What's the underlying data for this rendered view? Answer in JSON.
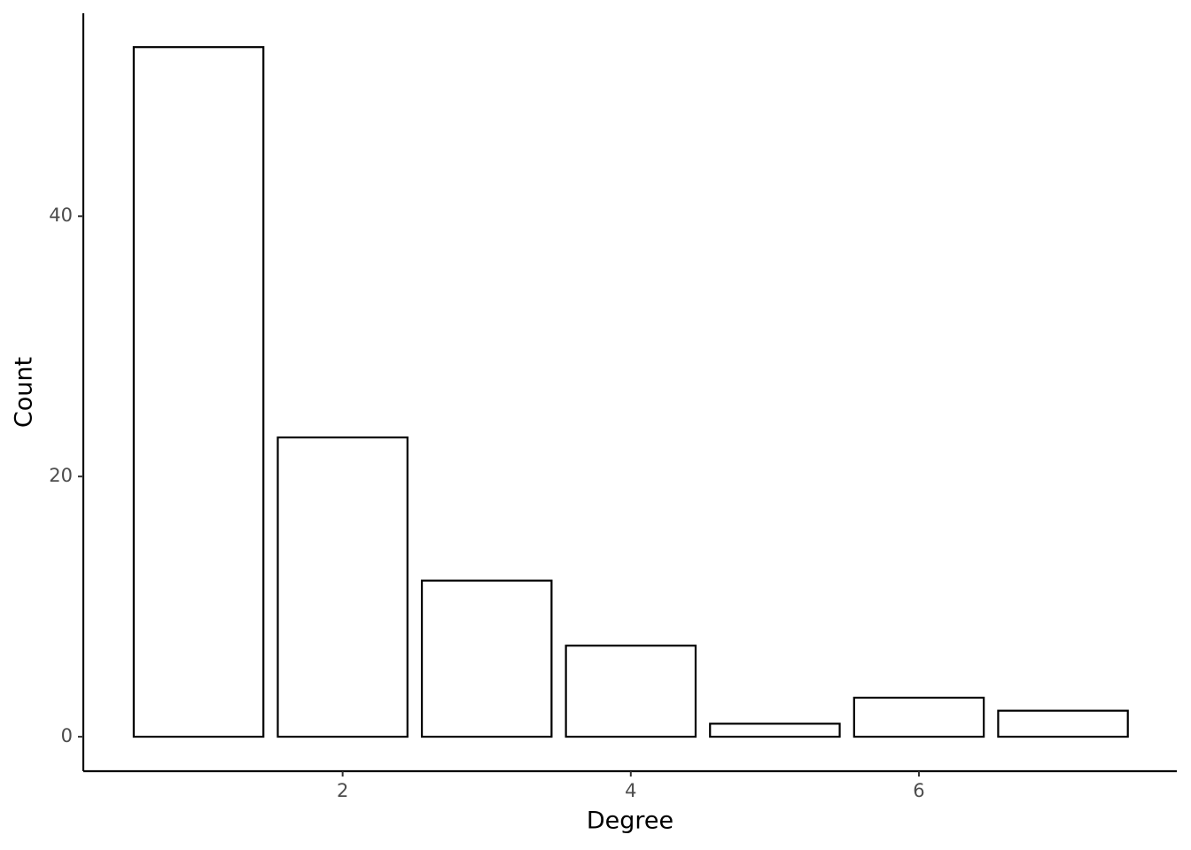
{
  "chart_data": {
    "type": "bar",
    "x_label": "Degree",
    "y_label": "Count",
    "x": [
      1,
      2,
      3,
      4,
      5,
      6,
      7
    ],
    "values": [
      53,
      23,
      12,
      7,
      1,
      3,
      2
    ],
    "color": "#ffffff",
    "edge_color": "#000000",
    "xlim": [
      0.2,
      7.79
    ],
    "ylim": [
      -2.65,
      55.6
    ],
    "xticks": [
      2,
      4,
      6
    ],
    "yticks": [
      0,
      20,
      40
    ],
    "grid": false
  }
}
